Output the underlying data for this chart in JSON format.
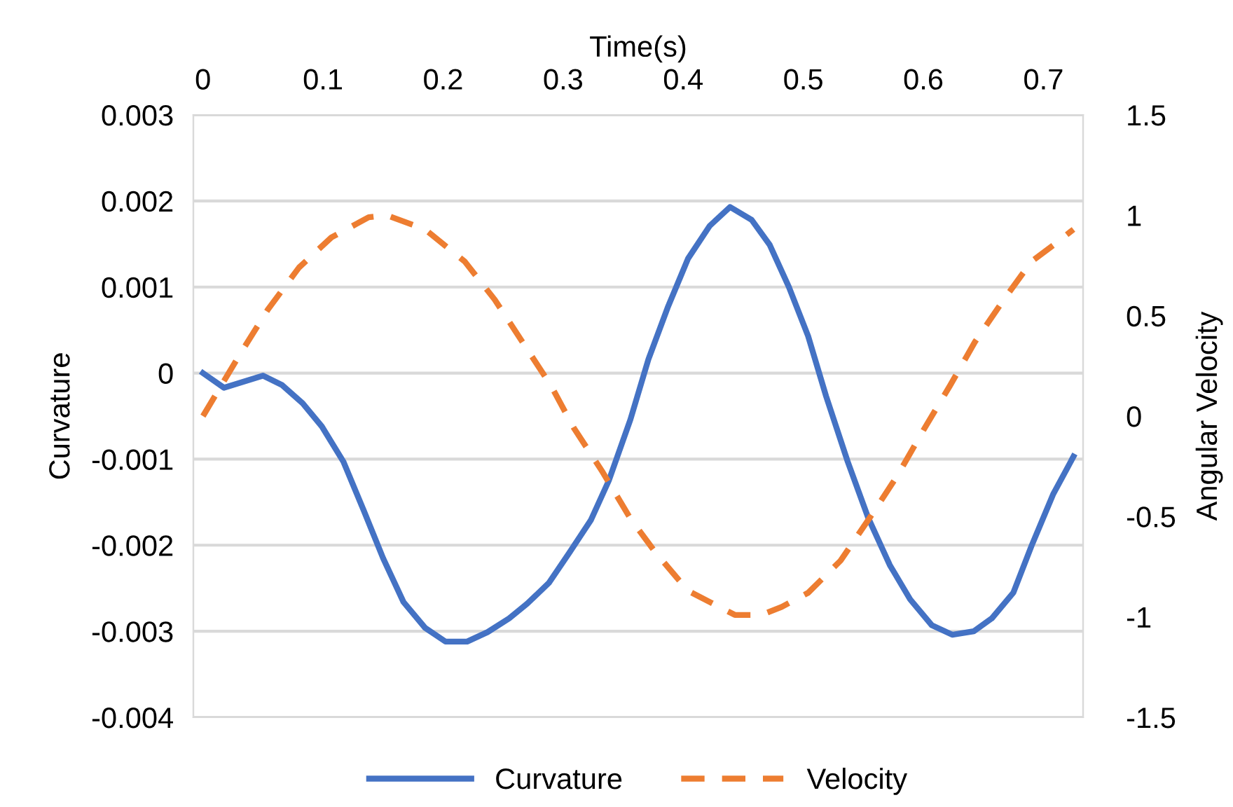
{
  "chart_data": {
    "type": "line",
    "xlabel": "Time(s)",
    "ylabel": "Curvature",
    "y2label": "Angular Velocity",
    "xlim": [
      -0.008,
      0.733
    ],
    "xticks": [
      0,
      0.1,
      0.2,
      0.3,
      0.4,
      0.5,
      0.6,
      0.7
    ],
    "ylim": [
      -0.004,
      0.003
    ],
    "yticks": [
      -0.004,
      -0.003,
      -0.002,
      -0.001,
      0,
      0.001,
      0.002,
      0.003
    ],
    "y2lim": [
      -1.5,
      1.5
    ],
    "y2ticks": [
      -1.5,
      -1,
      -0.5,
      0,
      0.5,
      1,
      1.5
    ],
    "grid": "y",
    "legend": "bottom",
    "marker": "none",
    "series": [
      {
        "name": "Curvature",
        "color": "#4472c4",
        "line_style": "solid",
        "x": [
          0,
          0.0175,
          0.05,
          0.066,
          0.083,
          0.099,
          0.117,
          0.134,
          0.15,
          0.167,
          0.185,
          0.202,
          0.22,
          0.237,
          0.255,
          0.27,
          0.288,
          0.305,
          0.323,
          0.338,
          0.356,
          0.371,
          0.387,
          0.404,
          0.422,
          0.439,
          0.457,
          0.472,
          0.488,
          0.504,
          0.519,
          0.537,
          0.554,
          0.572,
          0.589,
          0.607,
          0.624,
          0.642,
          0.657,
          0.675,
          0.69,
          0.708,
          0.725
        ],
        "values": [
          0,
          -0.00017,
          -3e-05,
          -0.00014,
          -0.00035,
          -0.00062,
          -0.00103,
          -0.0016,
          -0.00215,
          -0.00266,
          -0.00296,
          -0.00312,
          -0.00312,
          -0.00301,
          -0.00285,
          -0.00268,
          -0.00244,
          -0.00209,
          -0.00171,
          -0.00125,
          -0.00054,
          0.00016,
          0.00076,
          0.00133,
          0.00171,
          0.00193,
          0.00178,
          0.00149,
          0.001,
          0.00043,
          -0.00027,
          -0.00103,
          -0.00168,
          -0.00223,
          -0.00263,
          -0.00293,
          -0.00304,
          -0.003,
          -0.00285,
          -0.00255,
          -0.00201,
          -0.00141,
          -0.00097
        ]
      },
      {
        "name": "Velocity",
        "color": "#ed7d31",
        "line_style": "dashed",
        "axis": "y2",
        "x": [
          0,
          0.031,
          0.054,
          0.08,
          0.107,
          0.138,
          0.153,
          0.185,
          0.218,
          0.243,
          0.266,
          0.29,
          0.309,
          0.333,
          0.356,
          0.377,
          0.404,
          0.443,
          0.465,
          0.482,
          0.504,
          0.531,
          0.556,
          0.578,
          0.601,
          0.622,
          0.643,
          0.667,
          0.69,
          0.708,
          0.725
        ],
        "values": [
          0,
          0.31,
          0.53,
          0.74,
          0.89,
          0.99,
          1.0,
          0.93,
          0.77,
          0.58,
          0.37,
          0.15,
          -0.06,
          -0.28,
          -0.51,
          -0.68,
          -0.87,
          -0.99,
          -0.99,
          -0.95,
          -0.88,
          -0.72,
          -0.5,
          -0.3,
          -0.06,
          0.15,
          0.37,
          0.58,
          0.77,
          0.85,
          0.93
        ]
      }
    ]
  }
}
